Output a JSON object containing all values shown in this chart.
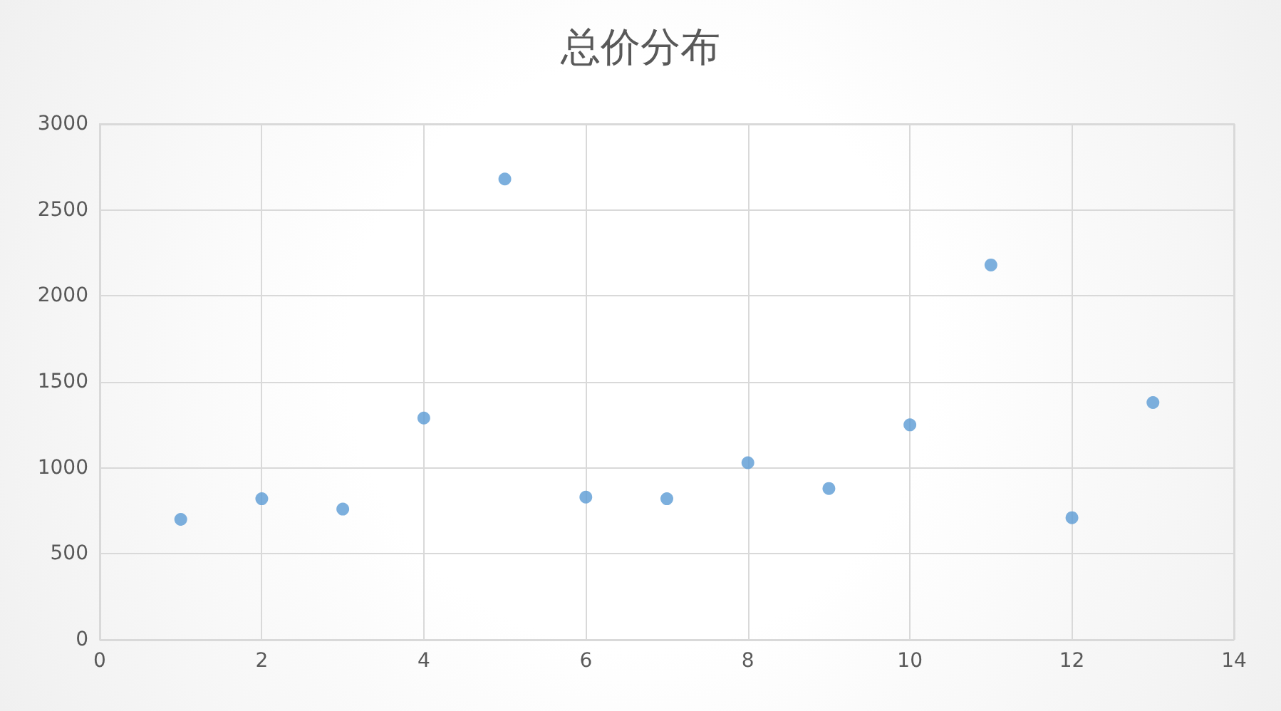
{
  "chart_data": {
    "type": "scatter",
    "title": "总价分布",
    "x": [
      1,
      2,
      3,
      4,
      5,
      6,
      7,
      8,
      9,
      10,
      11,
      12,
      13
    ],
    "values": [
      700,
      820,
      760,
      1290,
      2680,
      830,
      820,
      1030,
      880,
      1250,
      2180,
      710,
      1380
    ],
    "color": "#5b9bd5",
    "marker": "circle",
    "xlim": [
      0,
      14
    ],
    "xticks": [
      0,
      2,
      4,
      6,
      8,
      10,
      12,
      14
    ],
    "ylim": [
      0,
      3000
    ],
    "yticks": [
      0,
      500,
      1000,
      1500,
      2000,
      2500,
      3000
    ],
    "grid": true
  }
}
